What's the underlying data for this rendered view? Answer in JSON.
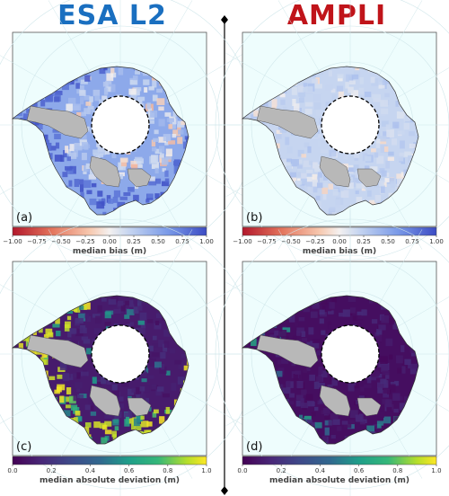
{
  "columns": [
    {
      "title": "ESA L2",
      "color": "#1a6fc0"
    },
    {
      "title": "AMPLI",
      "color": "#c0141a"
    }
  ],
  "colors": {
    "ocean": "#eefdfd",
    "ice_shelf": "#b8b8b8",
    "pole_hole": "#ffffff",
    "graticule": "#cfe6ea"
  },
  "chart_data": [
    {
      "type": "heatmap",
      "panel_label": "(a)",
      "colorbar_label": "median bias (m)",
      "colormap": "coolwarm_r",
      "range": [
        -1.0,
        1.0
      ],
      "ticks": [
        "−1.00",
        "−0.75",
        "−0.50",
        "−0.25",
        "0.00",
        "0.25",
        "0.50",
        "0.75",
        "1.00"
      ],
      "dominant_value": 0.5
    },
    {
      "type": "heatmap",
      "panel_label": "(b)",
      "colorbar_label": "median bias (m)",
      "colormap": "coolwarm_r",
      "range": [
        -1.0,
        1.0
      ],
      "ticks": [
        "−1.00",
        "−0.75",
        "−0.50",
        "−0.25",
        "0.00",
        "0.25",
        "0.50",
        "0.75",
        "1.00"
      ],
      "dominant_value": 0.2
    },
    {
      "type": "heatmap",
      "panel_label": "(c)",
      "colorbar_label": "median absolute deviation (m)",
      "colormap": "viridis",
      "range": [
        0.0,
        1.0
      ],
      "ticks": [
        "0.0",
        "0.2",
        "0.4",
        "0.6",
        "0.8",
        "1.0"
      ],
      "dominant_value": 0.1
    },
    {
      "type": "heatmap",
      "panel_label": "(d)",
      "colorbar_label": "median absolute deviation (m)",
      "colormap": "viridis",
      "range": [
        0.0,
        1.0
      ],
      "ticks": [
        "0.0",
        "0.2",
        "0.4",
        "0.6",
        "0.8",
        "1.0"
      ],
      "dominant_value": 0.05
    }
  ]
}
